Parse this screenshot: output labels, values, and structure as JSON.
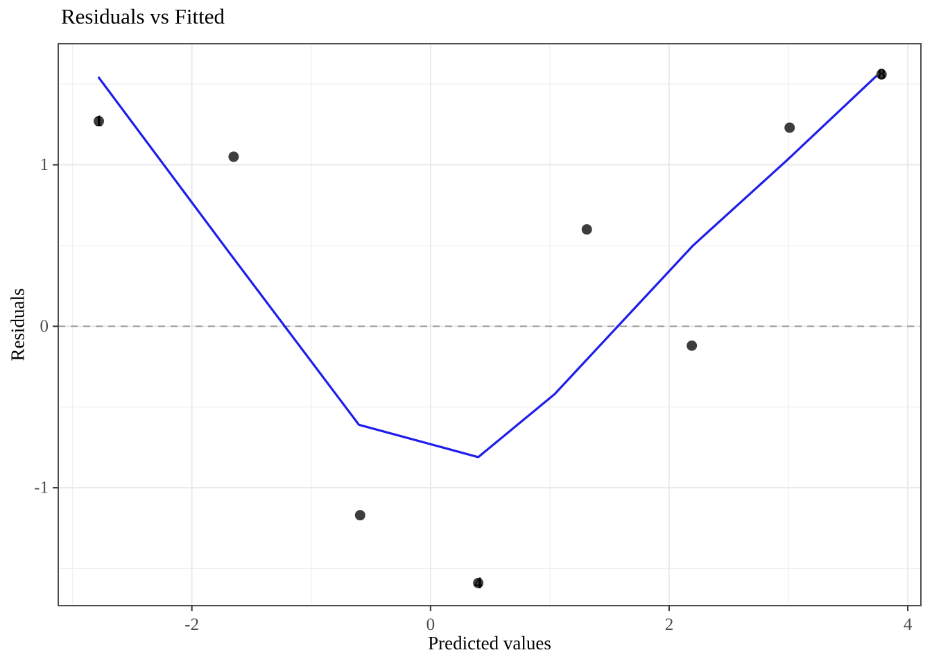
{
  "title": "Residuals vs Fitted",
  "axes": {
    "xlabel": "Predicted values",
    "ylabel": "Residuals"
  },
  "colors": {
    "background": "#ffffff",
    "panel_border": "#4d4d4d",
    "grid_major": "#e8e8e8",
    "grid_minor": "#f1f1f1",
    "zero_line": "#999999",
    "smooth_line": "#1e1eeb",
    "point": "#3d3d3d",
    "tick_mark": "#333333",
    "tick_label": "#4d4d4d",
    "point_label": "#000000"
  },
  "chart_data": {
    "type": "scatter",
    "title": "Residuals vs Fitted",
    "xlabel": "Predicted values",
    "ylabel": "Residuals",
    "xlim": [
      -3.12,
      4.11
    ],
    "ylim": [
      -1.73,
      1.75
    ],
    "x_ticks": [
      -2,
      0,
      2,
      4
    ],
    "x_tick_labels": [
      "-2",
      "0",
      "2",
      "4"
    ],
    "y_ticks": [
      -1,
      0,
      1
    ],
    "y_tick_labels": [
      "-1",
      "0",
      "1"
    ],
    "x_minor_ticks": [
      -3,
      -1,
      1,
      3
    ],
    "y_minor_ticks": [
      -1.5,
      -0.5,
      0.5,
      1.5
    ],
    "grid": true,
    "legend_position": "none",
    "zero_reference_line_y": 0,
    "points": [
      {
        "x": -2.78,
        "y": 1.27,
        "label": "1"
      },
      {
        "x": -1.65,
        "y": 1.05,
        "label": ""
      },
      {
        "x": -0.59,
        "y": -1.17,
        "label": ""
      },
      {
        "x": 0.4,
        "y": -1.59,
        "label": "4"
      },
      {
        "x": 1.31,
        "y": 0.6,
        "label": ""
      },
      {
        "x": 2.19,
        "y": -0.12,
        "label": ""
      },
      {
        "x": 3.01,
        "y": 1.23,
        "label": ""
      },
      {
        "x": 3.78,
        "y": 1.56,
        "label": "8"
      }
    ],
    "series": [
      {
        "name": "smooth-fit-line",
        "type": "line",
        "points": [
          [
            -2.78,
            1.54
          ],
          [
            -1.69,
            0.46
          ],
          [
            -0.6,
            -0.61
          ],
          [
            0.4,
            -0.81
          ],
          [
            1.04,
            -0.42
          ],
          [
            1.62,
            0.04
          ],
          [
            2.2,
            0.5
          ],
          [
            2.99,
            1.03
          ],
          [
            3.78,
            1.58
          ]
        ]
      }
    ]
  }
}
